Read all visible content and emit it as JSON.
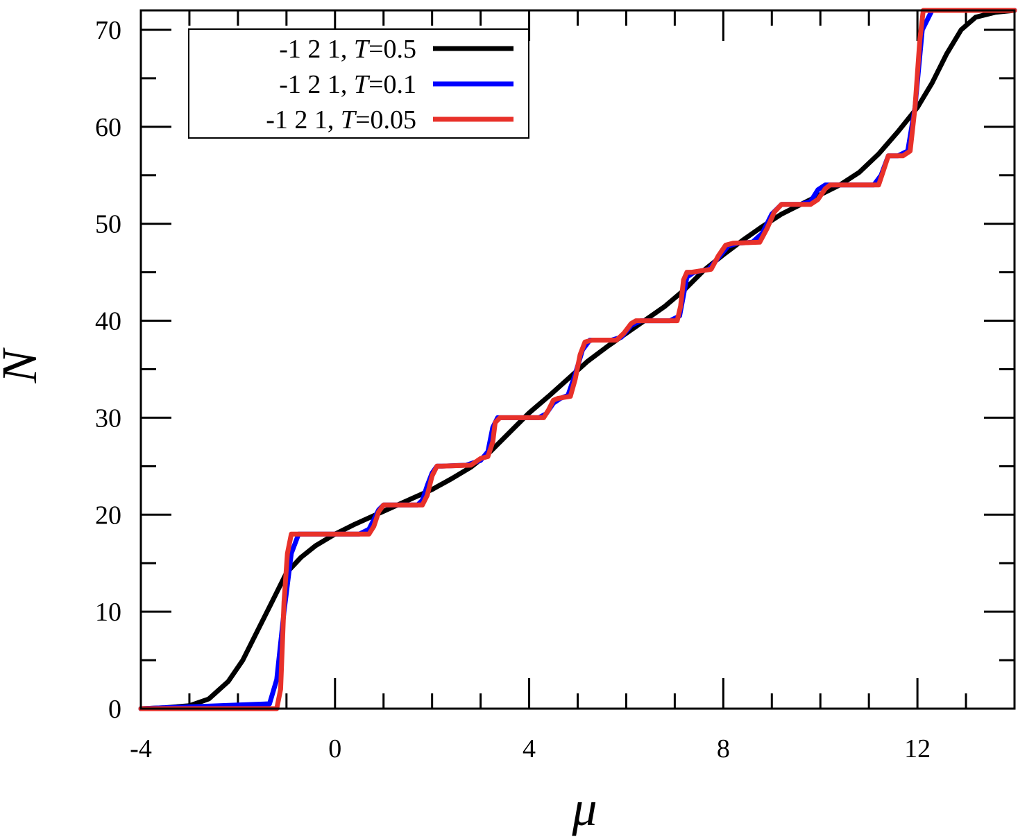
{
  "chart_data": {
    "type": "line",
    "xlabel": "μ",
    "ylabel": "N",
    "xlim": [
      -4,
      14
    ],
    "ylim": [
      0,
      72
    ],
    "x_ticks": [
      -4,
      0,
      4,
      8,
      12
    ],
    "y_ticks": [
      0,
      10,
      20,
      30,
      40,
      50,
      60,
      70
    ],
    "legend": {
      "position": "top-left"
    },
    "grid": false,
    "series": [
      {
        "name": "-1 2 1, T=0.5",
        "label_prefix": "-1 2 1, ",
        "label_var": "T",
        "label_value": "=0.5",
        "color": "#000000",
        "x": [
          -4,
          -3.5,
          -3,
          -2.6,
          -2.2,
          -1.9,
          -1.6,
          -1.3,
          -1,
          -0.7,
          -0.4,
          0,
          0.4,
          0.8,
          1.2,
          1.6,
          2,
          2.4,
          2.8,
          3.2,
          3.6,
          4,
          4.4,
          4.8,
          5.2,
          5.6,
          6,
          6.4,
          6.8,
          7.2,
          7.6,
          8,
          8.4,
          8.8,
          9.2,
          9.6,
          10,
          10.4,
          10.8,
          11.2,
          11.6,
          12,
          12.3,
          12.6,
          12.9,
          13.2,
          13.6,
          14
        ],
        "y": [
          0,
          0.1,
          0.3,
          1,
          2.8,
          5,
          8,
          11,
          14,
          15.6,
          16.8,
          18,
          19,
          19.9,
          20.8,
          21.7,
          22.6,
          23.7,
          24.9,
          26.5,
          28.5,
          30.5,
          32.2,
          34,
          35.8,
          37.3,
          38.7,
          40.1,
          41.5,
          43.2,
          45.2,
          46.8,
          48.3,
          49.7,
          51,
          52,
          53,
          54,
          55.3,
          57.2,
          59.5,
          62,
          64.5,
          67.5,
          70,
          71.3,
          71.8,
          72
        ]
      },
      {
        "name": "-1 2 1, T=0.1",
        "label_prefix": "-1 2 1, ",
        "label_var": "T",
        "label_value": "=0.1",
        "color": "#0000ff",
        "x": [
          -4,
          -1.35,
          -1.2,
          -1.05,
          -0.9,
          -0.75,
          0.5,
          0.7,
          0.8,
          0.9,
          1.0,
          1.1,
          1.7,
          1.8,
          1.9,
          2.0,
          2.1,
          2.2,
          2.7,
          3.0,
          3.15,
          3.25,
          3.35,
          3.5,
          4.2,
          4.35,
          4.5,
          4.65,
          4.8,
          4.95,
          5.1,
          5.25,
          5.7,
          5.9,
          6.1,
          6.3,
          6.9,
          7.1,
          7.25,
          7.4,
          7.7,
          7.9,
          8.1,
          8.3,
          8.6,
          8.8,
          9.0,
          9.2,
          9.6,
          9.8,
          9.95,
          10.1,
          11.1,
          11.25,
          11.4,
          11.6,
          11.8,
          11.95,
          12.1,
          12.3,
          14
        ],
        "y": [
          0,
          0.5,
          3,
          10,
          16,
          18,
          18,
          18.5,
          19.5,
          20.5,
          21,
          21,
          21,
          21.5,
          23,
          24.3,
          25,
          25,
          25.1,
          25.6,
          26.5,
          29,
          30,
          30,
          30,
          30.4,
          31.5,
          32,
          32.3,
          34.5,
          37,
          38,
          38,
          38.3,
          39.5,
          40,
          40,
          40.5,
          44.5,
          45,
          45.3,
          46.5,
          47.7,
          48,
          48.1,
          49,
          51,
          52,
          52,
          52.3,
          53.5,
          54,
          54,
          55,
          57,
          57,
          57.5,
          62,
          70,
          72,
          72
        ]
      },
      {
        "name": "-1 2 1, T=0.05",
        "label_prefix": "-1 2 1, ",
        "label_var": "T",
        "label_value": "=0.05",
        "color": "#e8312a",
        "x": [
          -4,
          -1.2,
          -1.12,
          -1.05,
          -0.98,
          -0.9,
          -0.8,
          0.7,
          0.8,
          0.9,
          1.0,
          1.1,
          1.8,
          1.9,
          2.0,
          2.1,
          2.2,
          2.8,
          3.0,
          3.15,
          3.25,
          3.3,
          3.4,
          4.3,
          4.4,
          4.5,
          4.6,
          4.85,
          4.95,
          5.05,
          5.15,
          5.3,
          5.8,
          5.95,
          6.1,
          6.2,
          7.05,
          7.12,
          7.18,
          7.25,
          7.35,
          7.75,
          7.9,
          8.05,
          8.2,
          8.75,
          8.9,
          9.05,
          9.2,
          9.8,
          9.95,
          10.1,
          10.2,
          11.2,
          11.3,
          11.4,
          11.7,
          11.85,
          11.95,
          12.05,
          12.12,
          12.2,
          14
        ],
        "y": [
          0,
          0,
          2,
          11,
          16,
          18,
          18,
          18,
          18.8,
          20.3,
          21,
          21,
          21,
          22,
          24,
          25,
          25,
          25.1,
          25.8,
          26,
          27.5,
          29.5,
          30,
          30,
          30.8,
          31.8,
          32,
          32.2,
          34,
          36.5,
          37.8,
          38,
          38,
          38.7,
          39.7,
          40,
          40,
          41.5,
          44.2,
          45,
          45,
          45.3,
          46.7,
          47.8,
          48,
          48.1,
          49.5,
          51.2,
          52,
          52,
          52.5,
          53.6,
          54,
          54,
          55.5,
          57,
          57,
          57.5,
          62,
          69,
          72,
          72,
          72
        ]
      }
    ]
  }
}
